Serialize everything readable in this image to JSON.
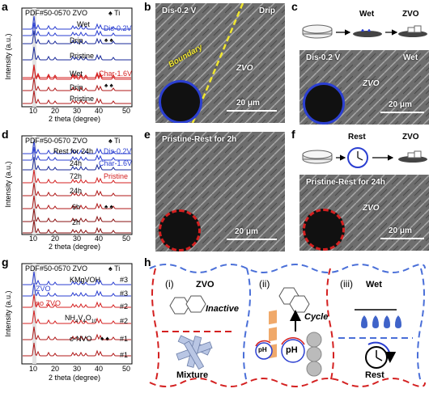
{
  "panels": {
    "a": {
      "label": "a",
      "pdf": "PDF#50-0570 ZVO",
      "ti": "♠ Ti",
      "xlabel": "2 theta (degree)",
      "ylabel": "Intensity (a.u.)",
      "ticks": [
        "10",
        "20",
        "30",
        "40",
        "50"
      ],
      "traces": [
        {
          "name": "Wet",
          "color": "#000000"
        },
        {
          "name": "Dis-0.2V",
          "color": "#2b3fd1"
        },
        {
          "name": "Drip",
          "color": "#000000"
        },
        {
          "name": "Pristine",
          "color": "#000000"
        },
        {
          "name": "Wet",
          "color": "#000000"
        },
        {
          "name": "Char-1.6V",
          "color": "#d42020"
        },
        {
          "name": "Drip",
          "color": "#000000"
        },
        {
          "name": "Pristine",
          "color": "#000000"
        }
      ]
    },
    "b": {
      "label": "b",
      "t1": "Dis-0.2 V",
      "t2": "Drip",
      "t3": "Boundary",
      "t4": "ZVO",
      "scale": "20 μm"
    },
    "c": {
      "label": "c",
      "wet": "Wet",
      "zvo": "ZVO",
      "t1": "Dis-0.2 V",
      "t2": "Wet",
      "t3": "ZVO",
      "scale": "20 μm"
    },
    "d": {
      "label": "d",
      "pdf": "PDF#50-0570 ZVO",
      "ti": "♠ Ti",
      "xlabel": "2 theta (degree)",
      "ylabel": "Intensity (a.u.)",
      "ticks": [
        "10",
        "20",
        "30",
        "40",
        "50"
      ],
      "traces": [
        {
          "name": "Rest for 24h",
          "color": "#000000"
        },
        {
          "name": "Dis-0.2V",
          "color": "#2b3fd1"
        },
        {
          "name": "24h",
          "color": "#000000"
        },
        {
          "name": "Char-1.6V",
          "color": "#2b3fd1"
        },
        {
          "name": "72h",
          "color": "#000000"
        },
        {
          "name": "Pristine",
          "color": "#d42020"
        },
        {
          "name": "24h",
          "color": "#000000"
        },
        {
          "name": "6h",
          "color": "#000000"
        },
        {
          "name": "2h",
          "color": "#000000"
        }
      ]
    },
    "e": {
      "label": "e",
      "t1": "Pristine-Rest for 2h",
      "scale": "20 μm"
    },
    "f": {
      "label": "f",
      "rest": "Rest",
      "zvo": "ZVO",
      "t1": "Pristine-Rest for 24h",
      "t2": "ZVO",
      "scale": "20 μm"
    },
    "g": {
      "label": "g",
      "pdf": "PDF#50-0570 ZVO",
      "ti": "♠ Ti",
      "xlabel": "2 theta (degree)",
      "ylabel": "Intensity (a.u.)",
      "ticks": [
        "10",
        "20",
        "30",
        "40",
        "50"
      ],
      "traces": [
        {
          "name": "KMgVOH",
          "num": "#3"
        },
        {
          "name": "ZVO",
          "num": "#3"
        },
        {
          "name": "no ZVO",
          "num": "#2"
        },
        {
          "name": "NH4V4O10",
          "num": "#2"
        },
        {
          "name": "o-NVO",
          "num": "#1"
        },
        {
          "name": "",
          "num": "#1"
        }
      ],
      "zvo": "ZVO",
      "nozvo": "no ZVO",
      "nh4": "NH",
      "nh4sub1": "4",
      "nh4mid": "V",
      "nh4sub2": "4",
      "nh4o": "O",
      "nh4sub3": "10"
    },
    "h": {
      "label": "h",
      "i": "(i)",
      "ii": "(ii)",
      "iii": "(iii)",
      "zvo": "ZVO",
      "inactive": "Inactive",
      "cycle": "Cycle",
      "ph": "pH",
      "wet": "Wet",
      "mixture": "Mixture",
      "rest": "Rest"
    }
  },
  "colors": {
    "blue": "#2b3fd1",
    "red": "#d42020",
    "dash_blue": "#4a6fd8",
    "dash_red": "#d42020"
  }
}
